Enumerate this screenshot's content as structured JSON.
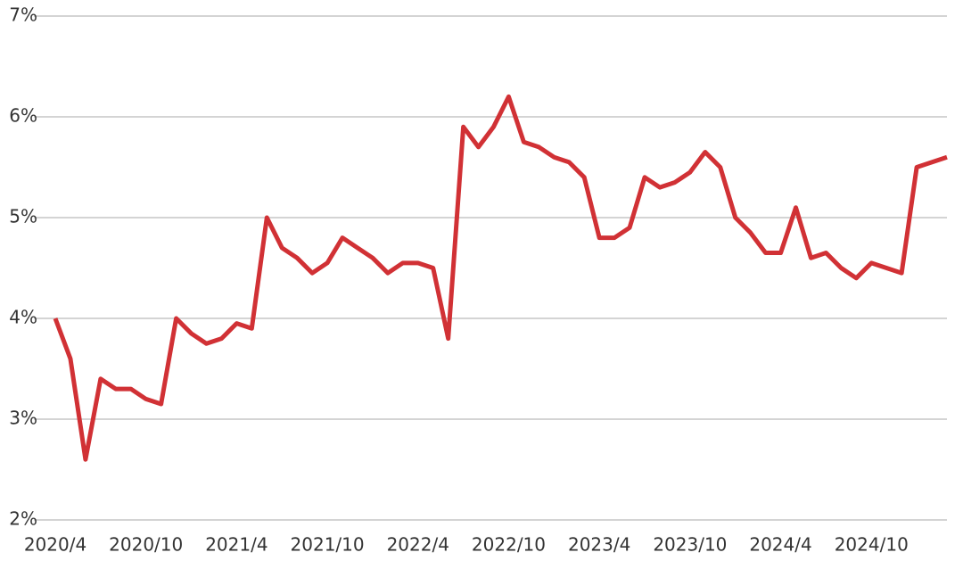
{
  "chart_data": {
    "type": "line",
    "categories": [
      "2020/4",
      null,
      null,
      null,
      null,
      null,
      "2020/10",
      null,
      null,
      null,
      null,
      null,
      "2021/4",
      null,
      null,
      null,
      null,
      null,
      "2021/10",
      null,
      null,
      null,
      null,
      null,
      "2022/4",
      null,
      null,
      null,
      null,
      null,
      "2022/10",
      null,
      null,
      null,
      null,
      null,
      "2023/4",
      null,
      null,
      null,
      null,
      null,
      "2023/10",
      null,
      null,
      null,
      null,
      null,
      "2024/4",
      null,
      null,
      null,
      null,
      null,
      "2024/10",
      null,
      null,
      null,
      null,
      null
    ],
    "series": [
      {
        "color": "#d13135",
        "values": [
          4.0,
          3.6,
          2.6,
          3.4,
          3.3,
          3.3,
          3.2,
          3.15,
          4.0,
          3.85,
          3.75,
          3.8,
          3.95,
          3.9,
          5.0,
          4.7,
          4.6,
          4.45,
          4.55,
          4.8,
          4.7,
          4.6,
          4.45,
          4.55,
          4.55,
          4.5,
          3.8,
          5.9,
          5.7,
          5.9,
          6.2,
          5.75,
          5.7,
          5.6,
          5.55,
          5.4,
          4.8,
          4.8,
          4.9,
          5.4,
          5.3,
          5.35,
          5.45,
          5.65,
          5.5,
          5.0,
          4.85,
          4.65,
          4.65,
          5.1,
          4.6,
          4.65,
          4.5,
          4.4,
          4.55,
          4.5,
          4.45,
          5.5,
          5.55,
          5.6
        ]
      }
    ],
    "ylim": [
      2,
      7
    ],
    "yticks": [
      {
        "value": 2,
        "label": "2%"
      },
      {
        "value": 3,
        "label": "3%"
      },
      {
        "value": 4,
        "label": "4%"
      },
      {
        "value": 5,
        "label": "5%"
      },
      {
        "value": 6,
        "label": "6%"
      },
      {
        "value": 7,
        "label": "7%"
      }
    ],
    "grid": true
  }
}
